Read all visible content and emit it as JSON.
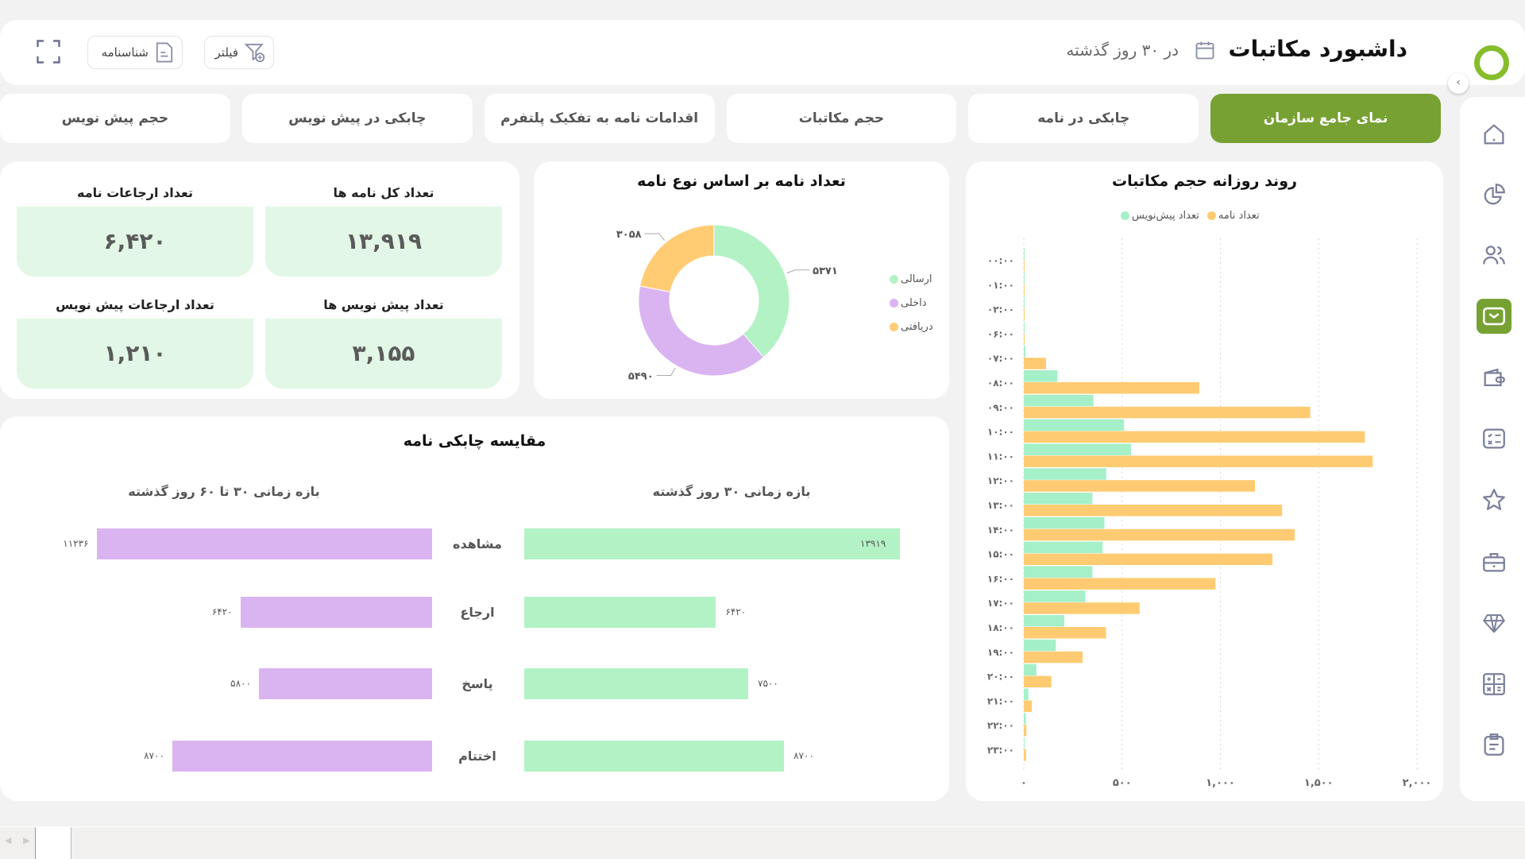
{
  "header": {
    "title": "داشبورد مکاتبات",
    "period": "در ۳۰ روز گذشته",
    "filter_label": "فیلتر",
    "profile_label": "شناسنامه"
  },
  "tabs": [
    {
      "label": "نمای جامع سازمان",
      "active": true
    },
    {
      "label": "چابکی در نامه",
      "active": false
    },
    {
      "label": "حجم مکاتبات",
      "active": false
    },
    {
      "label": "اقدامات نامه به تفکیک پلتفرم",
      "active": false
    },
    {
      "label": "چابکی در پیش نویس",
      "active": false
    },
    {
      "label": "حجم پیش نویس",
      "active": false
    }
  ],
  "sidebar": {
    "items": [
      "home-icon",
      "pie-chart-icon",
      "users-icon",
      "mail-icon",
      "wallet-icon",
      "checklist-icon",
      "star-icon",
      "briefcase-icon",
      "diamond-icon",
      "calculator-icon",
      "clipboard-icon"
    ],
    "active": "mail-icon"
  },
  "kpis": [
    {
      "label": "تعداد کل نامه ها",
      "value": "۱۳,۹۱۹"
    },
    {
      "label": "تعداد ارجاعات نامه",
      "value": "۶,۴۲۰"
    },
    {
      "label": "تعداد پیش نویس ها",
      "value": "۳,۱۵۵"
    },
    {
      "label": "تعداد ارجاعات پیش نویس",
      "value": "۱,۲۱۰"
    }
  ],
  "colors": {
    "accent": "#77a132",
    "kpi_bg": "#e2f7e6",
    "green": "#b3f2c4",
    "mint": "#a5f0c8",
    "purple": "#dab4f1",
    "orange": "#ffcb72"
  },
  "chart_data": [
    {
      "type": "pie",
      "title": "تعداد نامه بر اساس نوع نامه",
      "donut": true,
      "categories": [
        "ارسالی",
        "داخلی",
        "دریافتی"
      ],
      "values": [
        5371,
        5490,
        3058
      ],
      "value_labels": [
        "۵۳۷۱",
        "۵۴۹۰",
        "۳۰۵۸"
      ],
      "colors": [
        "#b3f2c4",
        "#dab4f1",
        "#ffcc74"
      ],
      "legend": "right"
    },
    {
      "type": "bar",
      "orientation": "horizontal",
      "title": "روند روزانه حجم مکاتبات",
      "categories": [
        "۰۰:۰۰",
        "۰۱:۰۰",
        "۰۲:۰۰",
        "۰۶:۰۰",
        "۰۷:۰۰",
        "۰۸:۰۰",
        "۰۹:۰۰",
        "۱۰:۰۰",
        "۱۱:۰۰",
        "۱۲:۰۰",
        "۱۳:۰۰",
        "۱۴:۰۰",
        "۱۵:۰۰",
        "۱۶:۰۰",
        "۱۷:۰۰",
        "۱۸:۰۰",
        "۱۹:۰۰",
        "۲۰:۰۰",
        "۲۱:۰۰",
        "۲۲:۰۰",
        "۲۳:۰۰"
      ],
      "series": [
        {
          "name": "تعداد پیش‌نویس",
          "color": "#a5f0c8",
          "values": [
            2,
            0,
            0,
            0,
            8,
            171,
            354,
            510,
            546,
            419,
            349,
            410,
            401,
            349,
            313,
            206,
            163,
            64,
            23,
            10,
            3
          ]
        },
        {
          "name": "تعداد نامه",
          "color": "#ffcb72",
          "values": [
            2,
            2,
            2,
            2,
            113,
            893,
            1457,
            1735,
            1775,
            1176,
            1314,
            1378,
            1265,
            975,
            589,
            418,
            299,
            140,
            41,
            13,
            11
          ]
        }
      ],
      "xlim": [
        0,
        2000
      ],
      "xticks": [
        0,
        500,
        1000,
        1500,
        2000
      ],
      "xtick_labels": [
        "۰",
        "۵۰۰",
        "۱,۰۰۰",
        "۱,۵۰۰",
        "۲,۰۰۰"
      ],
      "grid": true,
      "legend": "top"
    },
    {
      "type": "bar",
      "orientation": "horizontal",
      "title": "مقایسه چابکی نامه",
      "categories": [
        "مشاهده",
        "ارجاع",
        "پاسخ",
        "اختتام"
      ],
      "series": [
        {
          "name": "بازه زمانی ۳۰ روز گذشته",
          "color": "#b3f2c4",
          "values": [
            13919,
            6420,
            7500,
            8700
          ],
          "value_labels": [
            "۱۳۹۱۹",
            "۶۴۲۰",
            "۷۵۰۰",
            "۸۷۰۰"
          ]
        },
        {
          "name": "بازه زمانی ۳۰ تا ۶۰ روز گذشته",
          "color": "#dab4f1",
          "values": [
            11236,
            6420,
            5800,
            8700
          ],
          "value_labels": [
            "۱۱۲۳۶",
            "۶۴۲۰",
            "۵۸۰۰",
            "۸۷۰۰"
          ]
        }
      ]
    }
  ]
}
